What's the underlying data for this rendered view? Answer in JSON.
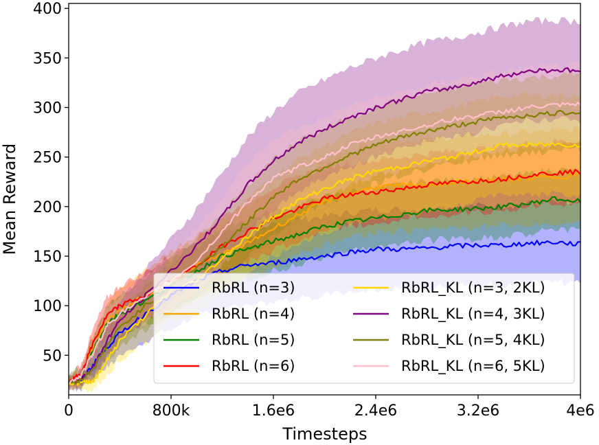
{
  "chart_data": {
    "type": "line",
    "title": "",
    "xlabel": "Timesteps",
    "ylabel": "Mean Reward",
    "xlim": [
      0,
      4000000
    ],
    "ylim": [
      10,
      405
    ],
    "x_ticks": [
      {
        "value": 0,
        "label": "0"
      },
      {
        "value": 800000,
        "label": "800k"
      },
      {
        "value": 1600000,
        "label": "1.6e6"
      },
      {
        "value": 2400000,
        "label": "2.4e6"
      },
      {
        "value": 3200000,
        "label": "3.2e6"
      },
      {
        "value": 4000000,
        "label": "4e6"
      }
    ],
    "y_ticks": [
      {
        "value": 50,
        "label": "50"
      },
      {
        "value": 100,
        "label": "100"
      },
      {
        "value": 150,
        "label": "150"
      },
      {
        "value": 200,
        "label": "200"
      },
      {
        "value": 250,
        "label": "250"
      },
      {
        "value": 300,
        "label": "300"
      },
      {
        "value": 350,
        "label": "350"
      },
      {
        "value": 400,
        "label": "400"
      }
    ],
    "legend_position": "lower-right",
    "x": [
      0,
      100000,
      200000,
      300000,
      400000,
      600000,
      800000,
      1000000,
      1200000,
      1400000,
      1600000,
      1800000,
      2000000,
      2200000,
      2400000,
      2600000,
      2800000,
      3000000,
      3200000,
      3400000,
      3600000,
      3800000,
      4000000
    ],
    "series": [
      {
        "name": "RbRL (n=3)",
        "color": "#0000ff",
        "values": [
          22,
          25,
          42,
          58,
          72,
          92,
          110,
          125,
          135,
          141,
          143,
          147,
          150,
          154,
          157,
          157,
          158,
          160,
          161,
          161,
          163,
          164,
          162
        ],
        "band": [
          6,
          8,
          12,
          18,
          22,
          28,
          32,
          36,
          38,
          40,
          40,
          40,
          40,
          40,
          40,
          40,
          40,
          40,
          40,
          40,
          40,
          40,
          40
        ]
      },
      {
        "name": "RbRL (n=4)",
        "color": "#ffa500",
        "values": [
          22,
          30,
          60,
          85,
          95,
          110,
          125,
          140,
          152,
          163,
          178,
          192,
          205,
          213,
          220,
          221,
          222,
          224,
          226,
          227,
          229,
          230,
          232
        ],
        "band": [
          6,
          10,
          14,
          18,
          22,
          26,
          30,
          32,
          34,
          36,
          38,
          40,
          42,
          44,
          46,
          46,
          46,
          46,
          46,
          46,
          46,
          46,
          46
        ]
      },
      {
        "name": "RbRL (n=5)",
        "color": "#008000",
        "values": [
          22,
          30,
          58,
          82,
          92,
          105,
          120,
          135,
          150,
          157,
          165,
          172,
          180,
          185,
          188,
          192,
          196,
          197,
          198,
          200,
          203,
          208,
          205
        ],
        "band": [
          6,
          10,
          14,
          18,
          20,
          24,
          26,
          28,
          30,
          30,
          30,
          30,
          30,
          30,
          30,
          30,
          30,
          30,
          30,
          30,
          30,
          30,
          30
        ]
      },
      {
        "name": "RbRL (n=6)",
        "color": "#ff0000",
        "values": [
          22,
          32,
          65,
          90,
          100,
          110,
          125,
          140,
          160,
          175,
          188,
          198,
          208,
          212,
          215,
          218,
          222,
          224,
          226,
          228,
          232,
          234,
          235
        ],
        "band": [
          6,
          10,
          14,
          18,
          20,
          24,
          26,
          28,
          30,
          30,
          32,
          32,
          32,
          32,
          32,
          32,
          32,
          32,
          32,
          32,
          32,
          32,
          32
        ]
      },
      {
        "name": "RbRL_KL (n=3, 2KL)",
        "color": "#ffd700",
        "values": [
          22,
          22,
          25,
          45,
          65,
          90,
          115,
          125,
          148,
          170,
          190,
          206,
          218,
          228,
          236,
          240,
          246,
          250,
          256,
          262,
          262,
          263,
          262
        ],
        "band": [
          5,
          6,
          10,
          14,
          20,
          26,
          30,
          34,
          36,
          38,
          40,
          42,
          44,
          46,
          48,
          50,
          50,
          50,
          50,
          50,
          50,
          50,
          50
        ]
      },
      {
        "name": "RbRL_KL (n=4, 3KL)",
        "color": "#800080",
        "values": [
          22,
          26,
          40,
          65,
          85,
          110,
          135,
          160,
          190,
          222,
          246,
          265,
          278,
          290,
          300,
          308,
          316,
          320,
          326,
          332,
          337,
          338,
          337
        ],
        "band": [
          6,
          8,
          12,
          16,
          20,
          26,
          32,
          38,
          44,
          48,
          50,
          50,
          50,
          50,
          50,
          50,
          50,
          50,
          50,
          50,
          50,
          50,
          50
        ]
      },
      {
        "name": "RbRL_KL (n=5, 4KL)",
        "color": "#808000",
        "values": [
          22,
          25,
          38,
          60,
          78,
          100,
          120,
          138,
          160,
          185,
          210,
          228,
          240,
          252,
          262,
          270,
          276,
          281,
          286,
          290,
          292,
          294,
          296
        ],
        "band": [
          6,
          8,
          12,
          16,
          20,
          24,
          28,
          30,
          34,
          36,
          38,
          38,
          38,
          38,
          38,
          38,
          38,
          38,
          38,
          38,
          38,
          38,
          38
        ]
      },
      {
        "name": "RbRL_KL (n=6, 5KL)",
        "color": "#ffc0cb",
        "values": [
          22,
          30,
          55,
          80,
          92,
          108,
          125,
          145,
          175,
          205,
          228,
          240,
          250,
          262,
          270,
          276,
          282,
          288,
          292,
          296,
          300,
          302,
          303
        ],
        "band": [
          6,
          10,
          14,
          18,
          20,
          24,
          28,
          32,
          36,
          38,
          40,
          40,
          40,
          40,
          40,
          40,
          40,
          40,
          40,
          40,
          40,
          40,
          40
        ]
      }
    ]
  }
}
